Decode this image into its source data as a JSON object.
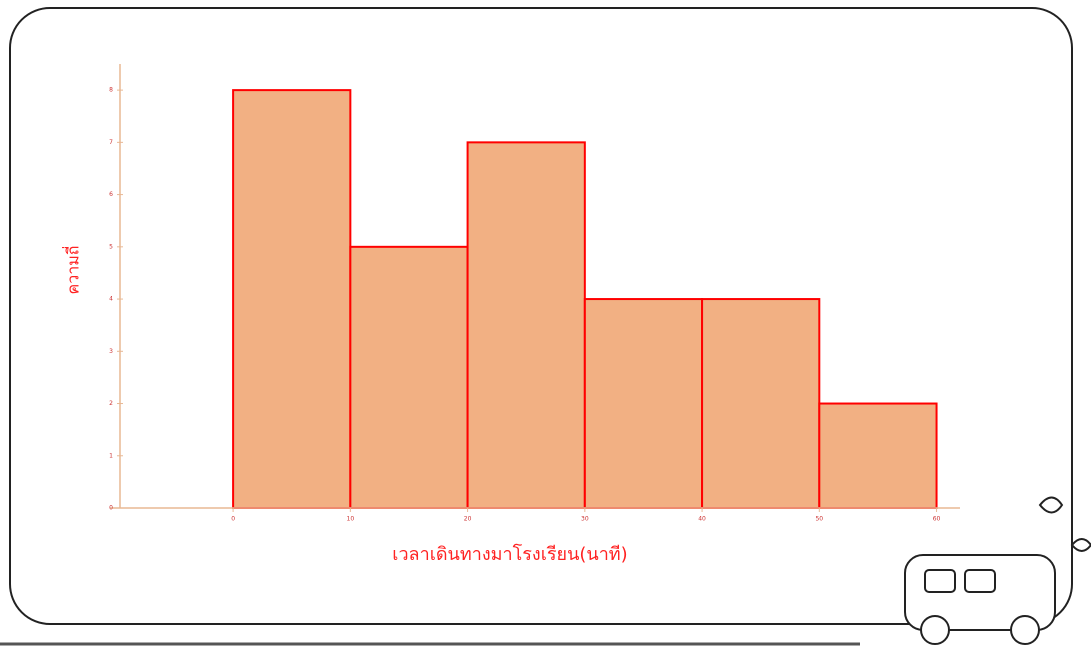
{
  "chart_data": {
    "type": "histogram",
    "x_label": "เวลาเดินทางมาโรงเรียน(นาที)",
    "y_label": "ความถี่",
    "bins": [
      0,
      10,
      20,
      30,
      40,
      50,
      60
    ],
    "values": [
      8,
      5,
      7,
      4,
      4,
      2
    ],
    "color": "#f2b083",
    "edge_color": "#ff0000",
    "xlim": [
      -10.5,
      62
    ],
    "ylim": [
      0,
      8.5
    ],
    "xticks": [
      0,
      10,
      20,
      30,
      40,
      50,
      60
    ],
    "yticks": [
      0,
      1,
      2,
      3,
      4,
      5,
      6,
      7,
      8
    ]
  }
}
